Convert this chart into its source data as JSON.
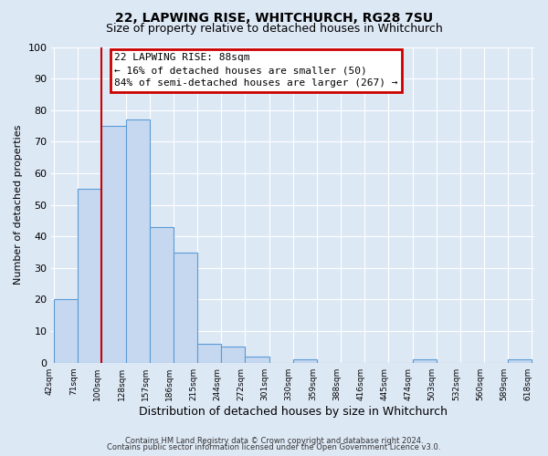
{
  "title": "22, LAPWING RISE, WHITCHURCH, RG28 7SU",
  "subtitle": "Size of property relative to detached houses in Whitchurch",
  "xlabel": "Distribution of detached houses by size in Whitchurch",
  "ylabel": "Number of detached properties",
  "bar_values": [
    20,
    55,
    75,
    77,
    43,
    35,
    6,
    5,
    2,
    0,
    1,
    0,
    0,
    0,
    0,
    1,
    0,
    0,
    0,
    1
  ],
  "bin_labels": [
    "42sqm",
    "71sqm",
    "100sqm",
    "128sqm",
    "157sqm",
    "186sqm",
    "215sqm",
    "244sqm",
    "272sqm",
    "301sqm",
    "330sqm",
    "359sqm",
    "388sqm",
    "416sqm",
    "445sqm",
    "474sqm",
    "503sqm",
    "532sqm",
    "560sqm",
    "589sqm",
    "618sqm"
  ],
  "bar_color": "#c5d8f0",
  "bar_edge_color": "#5b9bd5",
  "vline_after_bar": 1,
  "vline_color": "#cc0000",
  "ylim": [
    0,
    100
  ],
  "yticks": [
    0,
    10,
    20,
    30,
    40,
    50,
    60,
    70,
    80,
    90,
    100
  ],
  "annotation_title": "22 LAPWING RISE: 88sqm",
  "annotation_line1": "← 16% of detached houses are smaller (50)",
  "annotation_line2": "84% of semi-detached houses are larger (267) →",
  "annotation_box_color": "#cc0000",
  "footer_line1": "Contains HM Land Registry data © Crown copyright and database right 2024.",
  "footer_line2": "Contains public sector information licensed under the Open Government Licence v3.0.",
  "bg_color": "#dde8f5",
  "plot_bg_color": "#dde8f5",
  "grid_color": "white",
  "title_fontsize": 10,
  "subtitle_fontsize": 9
}
